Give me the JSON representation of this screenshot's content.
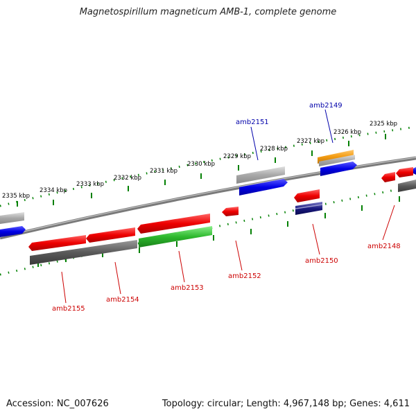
{
  "title": "Magnetospirillum magneticum AMB-1, complete genome",
  "footer": {
    "accession": "Accession: NC_007626",
    "topology": "Topology: circular; Length: 4,967,148 bp; Genes: 4,611"
  },
  "colors": {
    "forward_cds": "#0000e6",
    "reverse_cds": "#e60000",
    "gray_feature": "#8f8f8f",
    "dark_feature": "#555555",
    "green_feature": "#2db82d",
    "orange_feature": "#f39c12",
    "navy_feature": "#1a1a80",
    "tick": "#008000",
    "backbone": "#8a8a8a",
    "label_blue": "#0000aa",
    "label_red": "#cc0000"
  },
  "scale_labels": [
    "2335 kbp",
    "2334 kbp",
    "2333 kbp",
    "2332 kbp",
    "2331 kbp",
    "2330 kbp",
    "2329 kbp",
    "2328 kbp",
    "2327 kbp",
    "2326 kbp",
    "2325 kbp"
  ],
  "gene_labels": [
    "amb2155",
    "amb2154",
    "amb2153",
    "amb2152",
    "amb2151",
    "amb2150",
    "amb2149",
    "amb2148"
  ]
}
